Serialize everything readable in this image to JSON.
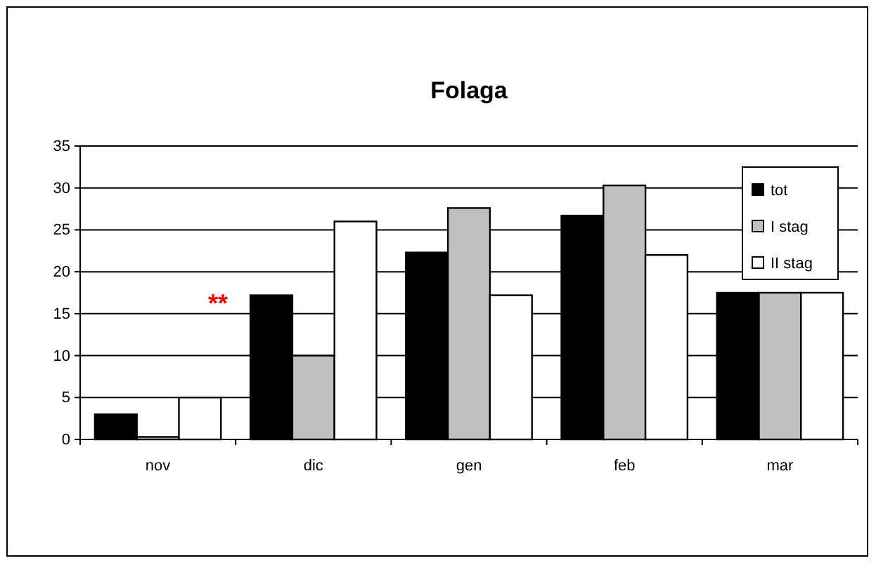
{
  "chart_data": {
    "type": "bar",
    "title": "Folaga",
    "categories": [
      "nov",
      "dic",
      "gen",
      "feb",
      "mar"
    ],
    "series": [
      {
        "name": "tot",
        "color": "#000000",
        "values": [
          3,
          17.2,
          22.3,
          26.7,
          17.5
        ]
      },
      {
        "name": "I stag",
        "color": "#c0c0c0",
        "values": [
          0.3,
          10,
          27.6,
          30.3,
          17.5
        ]
      },
      {
        "name": "II stag",
        "color": "#ffffff",
        "values": [
          5,
          26,
          17.2,
          22,
          17.5
        ]
      }
    ],
    "ylim": [
      0,
      35
    ],
    "yticks": [
      0,
      5,
      10,
      15,
      20,
      25,
      30,
      35
    ],
    "grid": "y",
    "legend": "top right",
    "annotations": [
      "**"
    ]
  }
}
